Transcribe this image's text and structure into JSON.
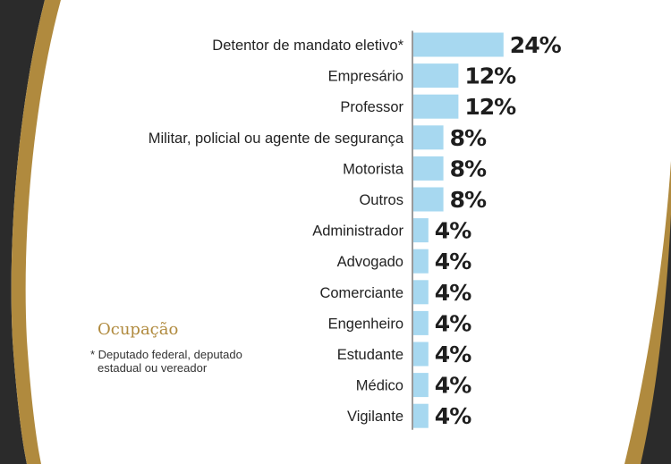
{
  "colors": {
    "bar": "#a7d8f0",
    "accent_gold": "#b08a3e",
    "dark": "#2b2b2b",
    "text": "#222222"
  },
  "legend": {
    "title": "Ocupação",
    "footnote_line1": "* Deputado federal, deputado",
    "footnote_line2": "estadual ou vereador"
  },
  "chart_data": {
    "type": "bar",
    "orientation": "horizontal",
    "categories": [
      "Detentor de mandato eletivo*",
      "Empresário",
      "Professor",
      "Militar, policial ou agente de segurança",
      "Motorista",
      "Outros",
      "Administrador",
      "Advogado",
      "Comerciante",
      "Engenheiro",
      "Estudante",
      "Médico",
      "Vigilante"
    ],
    "values": [
      24,
      12,
      12,
      8,
      8,
      8,
      4,
      4,
      4,
      4,
      4,
      4,
      4
    ],
    "value_labels": [
      "24%",
      "12%",
      "12%",
      "8%",
      "8%",
      "8%",
      "4%",
      "4%",
      "4%",
      "4%",
      "4%",
      "4%",
      "4%"
    ],
    "unit": "%",
    "grid": false
  }
}
